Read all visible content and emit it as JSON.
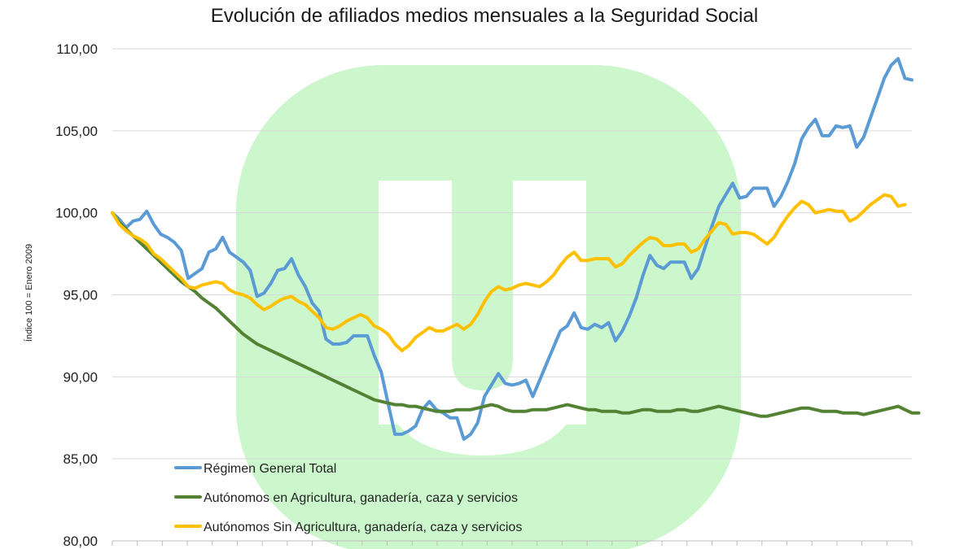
{
  "chart_data": {
    "type": "line",
    "title": "Evolución de afiliados medios mensuales a la Seguridad Social",
    "xlabel": "",
    "ylabel": "Índice 100 = Enero 2009",
    "ylim": [
      80,
      110
    ],
    "yticks": [
      "80,00",
      "85,00",
      "90,00",
      "95,00",
      "100,00",
      "105,00",
      "110,00"
    ],
    "ytick_values": [
      80,
      85,
      90,
      95,
      100,
      105,
      110
    ],
    "grid": true,
    "legend_position": "bottom-left",
    "series": [
      {
        "name": "Régimen General Total",
        "color": "#5b9bd5",
        "values": [
          100.0,
          99.6,
          99.1,
          99.5,
          99.6,
          100.1,
          99.3,
          98.7,
          98.5,
          98.2,
          97.7,
          96.0,
          96.3,
          96.6,
          97.6,
          97.8,
          98.5,
          97.6,
          97.3,
          97.0,
          96.5,
          94.9,
          95.1,
          95.7,
          96.5,
          96.6,
          97.2,
          96.2,
          95.5,
          94.5,
          94.0,
          92.3,
          92.0,
          92.0,
          92.1,
          92.5,
          92.5,
          92.5,
          91.3,
          90.3,
          88.4,
          86.5,
          86.5,
          86.7,
          87.0,
          88.0,
          88.5,
          88.0,
          87.8,
          87.5,
          87.5,
          86.2,
          86.5,
          87.2,
          88.8,
          89.5,
          90.2,
          89.6,
          89.5,
          89.6,
          89.8,
          88.8,
          89.8,
          90.8,
          91.8,
          92.8,
          93.1,
          93.9,
          93.0,
          92.9,
          93.2,
          93.0,
          93.3,
          92.2,
          92.8,
          93.7,
          94.8,
          96.2,
          97.4,
          96.8,
          96.6,
          97.0,
          97.0,
          97.0,
          96.0,
          96.6,
          97.9,
          99.2,
          100.4,
          101.1,
          101.8,
          100.9,
          101.0,
          101.5,
          101.5,
          101.5,
          100.4,
          101.0,
          101.9,
          103.0,
          104.5,
          105.2,
          105.7,
          104.7,
          104.7,
          105.3,
          105.2,
          105.3,
          104.0,
          104.6,
          105.8,
          107.0,
          108.2,
          109.0,
          109.4,
          108.2,
          108.1
        ]
      },
      {
        "name": "Autónomos en Agricultura, ganadería, caza y servicios",
        "color": "#548235",
        "values": [
          100.0,
          99.4,
          99.0,
          98.6,
          98.2,
          97.8,
          97.4,
          97.0,
          96.6,
          96.2,
          95.8,
          95.5,
          95.2,
          94.8,
          94.5,
          94.2,
          93.8,
          93.4,
          93.0,
          92.6,
          92.3,
          92.0,
          91.8,
          91.6,
          91.4,
          91.2,
          91.0,
          90.8,
          90.6,
          90.4,
          90.2,
          90.0,
          89.8,
          89.6,
          89.4,
          89.2,
          89.0,
          88.8,
          88.6,
          88.5,
          88.4,
          88.3,
          88.3,
          88.2,
          88.2,
          88.1,
          88.0,
          87.9,
          87.9,
          87.9,
          88.0,
          88.0,
          88.0,
          88.1,
          88.2,
          88.3,
          88.2,
          88.0,
          87.9,
          87.9,
          87.9,
          88.0,
          88.0,
          88.0,
          88.1,
          88.2,
          88.3,
          88.2,
          88.1,
          88.0,
          88.0,
          87.9,
          87.9,
          87.9,
          87.8,
          87.8,
          87.9,
          88.0,
          88.0,
          87.9,
          87.9,
          87.9,
          88.0,
          88.0,
          87.9,
          87.9,
          88.0,
          88.1,
          88.2,
          88.1,
          88.0,
          87.9,
          87.8,
          87.7,
          87.6,
          87.6,
          87.7,
          87.8,
          87.9,
          88.0,
          88.1,
          88.1,
          88.0,
          87.9,
          87.9,
          87.9,
          87.8,
          87.8,
          87.8,
          87.7,
          87.8,
          87.9,
          88.0,
          88.1,
          88.2,
          88.0,
          87.8,
          87.8
        ]
      },
      {
        "name": "Autónomos Sin Agricultura, ganadería, caza y servicios",
        "color": "#ffc000",
        "values": [
          100.0,
          99.3,
          98.9,
          98.6,
          98.4,
          98.1,
          97.5,
          97.2,
          96.8,
          96.4,
          96.0,
          95.5,
          95.4,
          95.6,
          95.7,
          95.8,
          95.7,
          95.3,
          95.1,
          95.0,
          94.8,
          94.4,
          94.1,
          94.3,
          94.6,
          94.8,
          94.9,
          94.6,
          94.4,
          94.0,
          93.6,
          93.0,
          92.9,
          93.1,
          93.4,
          93.6,
          93.8,
          93.6,
          93.1,
          92.9,
          92.6,
          92.0,
          91.6,
          91.9,
          92.4,
          92.7,
          93.0,
          92.8,
          92.8,
          93.0,
          93.2,
          92.9,
          93.2,
          93.8,
          94.6,
          95.2,
          95.5,
          95.3,
          95.4,
          95.6,
          95.7,
          95.6,
          95.5,
          95.8,
          96.2,
          96.8,
          97.3,
          97.6,
          97.1,
          97.1,
          97.2,
          97.2,
          97.2,
          96.7,
          96.9,
          97.4,
          97.8,
          98.2,
          98.5,
          98.4,
          98.0,
          98.0,
          98.1,
          98.1,
          97.6,
          97.8,
          98.4,
          98.9,
          99.4,
          99.3,
          98.7,
          98.8,
          98.8,
          98.7,
          98.4,
          98.1,
          98.5,
          99.2,
          99.8,
          100.3,
          100.7,
          100.5,
          100.0,
          100.1,
          100.2,
          100.1,
          100.1,
          99.5,
          99.7,
          100.1,
          100.5,
          100.8,
          101.1,
          101.0,
          100.4,
          100.5
        ]
      }
    ]
  }
}
